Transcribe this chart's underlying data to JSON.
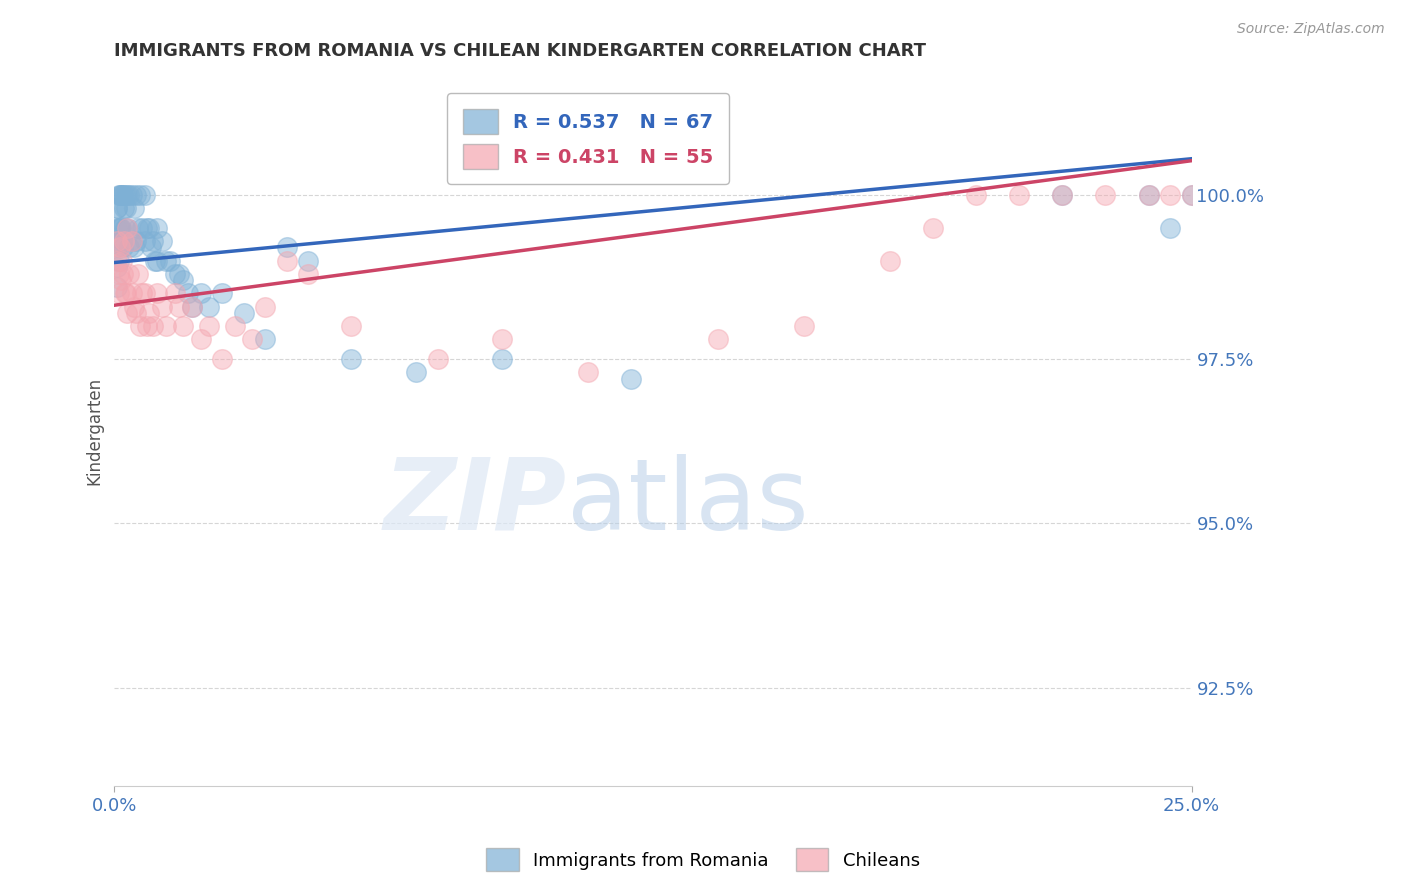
{
  "title": "IMMIGRANTS FROM ROMANIA VS CHILEAN KINDERGARTEN CORRELATION CHART",
  "source": "Source: ZipAtlas.com",
  "ylabel": "Kindergarten",
  "y_ticks": [
    92.5,
    95.0,
    97.5,
    100.0
  ],
  "y_tick_labels": [
    "92.5%",
    "95.0%",
    "97.5%",
    "100.0%"
  ],
  "x_min": 0.0,
  "x_max": 25.0,
  "y_min": 91.0,
  "y_max": 101.8,
  "blue_R": 0.537,
  "blue_N": 67,
  "pink_R": 0.431,
  "pink_N": 55,
  "blue_color": "#7EB0D5",
  "pink_color": "#F4A6B0",
  "blue_line_color": "#3366BB",
  "pink_line_color": "#CC4466",
  "legend_label_blue": "Immigrants from Romania",
  "legend_label_pink": "Chileans",
  "watermark_zip": "ZIP",
  "watermark_atlas": "atlas",
  "title_color": "#333333",
  "axis_label_color": "#4477BB",
  "blue_trend_x0": 0.0,
  "blue_trend_y0": 98.97,
  "blue_trend_x1": 25.0,
  "blue_trend_y1": 100.55,
  "pink_trend_x0": 0.0,
  "pink_trend_y0": 98.32,
  "pink_trend_x1": 25.0,
  "pink_trend_y1": 100.52,
  "blue_x": [
    0.05,
    0.05,
    0.05,
    0.05,
    0.05,
    0.07,
    0.07,
    0.1,
    0.1,
    0.1,
    0.12,
    0.12,
    0.15,
    0.15,
    0.18,
    0.18,
    0.2,
    0.2,
    0.22,
    0.25,
    0.25,
    0.28,
    0.3,
    0.3,
    0.35,
    0.35,
    0.4,
    0.4,
    0.45,
    0.45,
    0.5,
    0.5,
    0.55,
    0.6,
    0.65,
    0.7,
    0.7,
    0.75,
    0.8,
    0.85,
    0.9,
    0.95,
    1.0,
    1.0,
    1.1,
    1.2,
    1.3,
    1.4,
    1.5,
    1.6,
    1.7,
    1.8,
    2.0,
    2.2,
    2.5,
    3.0,
    3.5,
    4.0,
    4.5,
    5.5,
    7.0,
    9.0,
    12.0,
    22.0,
    24.0,
    24.5,
    25.0
  ],
  "blue_y": [
    99.8,
    99.5,
    99.2,
    98.9,
    98.6,
    99.8,
    99.3,
    100.0,
    99.5,
    99.0,
    100.0,
    99.5,
    100.0,
    99.5,
    100.0,
    99.3,
    100.0,
    99.2,
    99.8,
    100.0,
    99.5,
    99.8,
    100.0,
    99.5,
    100.0,
    99.2,
    100.0,
    99.3,
    99.8,
    99.2,
    100.0,
    99.3,
    99.5,
    100.0,
    99.5,
    100.0,
    99.3,
    99.5,
    99.5,
    99.2,
    99.3,
    99.0,
    99.5,
    99.0,
    99.3,
    99.0,
    99.0,
    98.8,
    98.8,
    98.7,
    98.5,
    98.3,
    98.5,
    98.3,
    98.5,
    98.2,
    97.8,
    99.2,
    99.0,
    97.5,
    97.3,
    97.5,
    97.2,
    100.0,
    100.0,
    99.5,
    100.0
  ],
  "pink_x": [
    0.05,
    0.07,
    0.1,
    0.1,
    0.12,
    0.15,
    0.18,
    0.2,
    0.22,
    0.25,
    0.28,
    0.3,
    0.35,
    0.4,
    0.45,
    0.5,
    0.55,
    0.6,
    0.65,
    0.7,
    0.75,
    0.8,
    0.9,
    1.0,
    1.1,
    1.2,
    1.4,
    1.5,
    1.6,
    1.8,
    2.0,
    2.2,
    2.5,
    2.8,
    3.2,
    3.5,
    4.0,
    4.5,
    5.5,
    7.5,
    9.0,
    11.0,
    14.0,
    16.0,
    18.0,
    19.0,
    20.0,
    21.0,
    22.0,
    23.0,
    24.0,
    24.5,
    25.0,
    0.3,
    0.4
  ],
  "pink_y": [
    99.3,
    99.0,
    98.8,
    98.5,
    99.2,
    98.7,
    99.0,
    98.8,
    99.3,
    98.5,
    98.5,
    98.2,
    98.8,
    98.5,
    98.3,
    98.2,
    98.8,
    98.0,
    98.5,
    98.5,
    98.0,
    98.2,
    98.0,
    98.5,
    98.3,
    98.0,
    98.5,
    98.3,
    98.0,
    98.3,
    97.8,
    98.0,
    97.5,
    98.0,
    97.8,
    98.3,
    99.0,
    98.8,
    98.0,
    97.5,
    97.8,
    97.3,
    97.8,
    98.0,
    99.0,
    99.5,
    100.0,
    100.0,
    100.0,
    100.0,
    100.0,
    100.0,
    100.0,
    99.5,
    99.3
  ]
}
